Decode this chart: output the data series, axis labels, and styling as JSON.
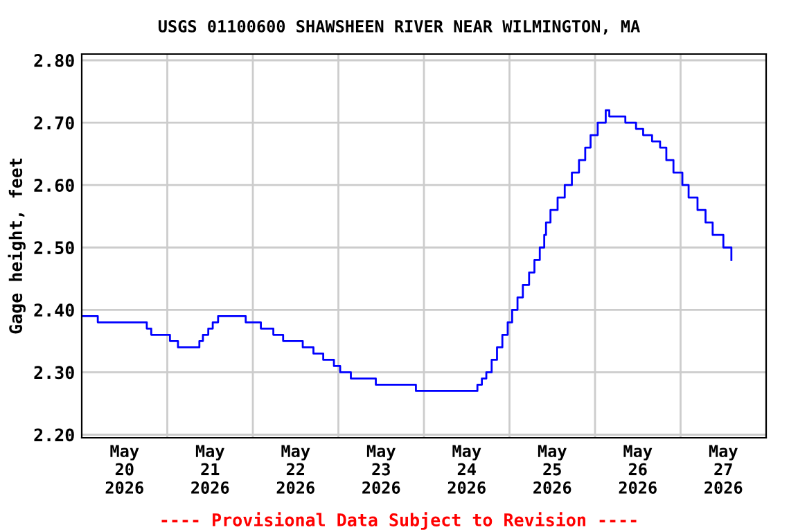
{
  "chart_data": {
    "type": "step",
    "title": "USGS 01100600 SHAWSHEEN RIVER NEAR WILMINGTON, MA",
    "ylabel": "Gage height, feet",
    "annotations": [
      "---- Provisional Data Subject to Revision ----"
    ],
    "series": [
      {
        "color": "#0000ff",
        "x": [
          "2026-05-20T00:15",
          "2026-05-20T04:30",
          "2026-05-20T18:15",
          "2026-05-20T19:30",
          "2026-05-21T00:45",
          "2026-05-21T03:00",
          "2026-05-21T09:00",
          "2026-05-21T10:00",
          "2026-05-21T11:30",
          "2026-05-21T12:45",
          "2026-05-21T14:15",
          "2026-05-21T22:00",
          "2026-05-22T02:15",
          "2026-05-22T05:45",
          "2026-05-22T08:30",
          "2026-05-22T14:00",
          "2026-05-22T17:00",
          "2026-05-22T19:45",
          "2026-05-22T22:45",
          "2026-05-23T00:30",
          "2026-05-23T03:30",
          "2026-05-23T10:30",
          "2026-05-23T21:45",
          "2026-05-24T15:00",
          "2026-05-24T16:15",
          "2026-05-24T17:30",
          "2026-05-24T19:00",
          "2026-05-24T20:30",
          "2026-05-24T22:00",
          "2026-05-24T23:30",
          "2026-05-25T00:45",
          "2026-05-25T02:15",
          "2026-05-25T03:45",
          "2026-05-25T05:30",
          "2026-05-25T07:00",
          "2026-05-25T08:30",
          "2026-05-25T09:45",
          "2026-05-25T10:15",
          "2026-05-25T11:30",
          "2026-05-25T13:30",
          "2026-05-25T15:30",
          "2026-05-25T17:30",
          "2026-05-25T19:30",
          "2026-05-25T21:15",
          "2026-05-25T22:45",
          "2026-05-26T00:45",
          "2026-05-26T03:00",
          "2026-05-26T04:00",
          "2026-05-26T08:30",
          "2026-05-26T11:30",
          "2026-05-26T13:30",
          "2026-05-26T16:00",
          "2026-05-26T18:15",
          "2026-05-26T20:00",
          "2026-05-26T22:00",
          "2026-05-27T00:30",
          "2026-05-27T02:15",
          "2026-05-27T04:45",
          "2026-05-27T07:00",
          "2026-05-27T09:00",
          "2026-05-27T12:00",
          "2026-05-27T14:15"
        ],
        "values": [
          2.39,
          2.38,
          2.37,
          2.36,
          2.35,
          2.34,
          2.35,
          2.36,
          2.37,
          2.38,
          2.39,
          2.38,
          2.37,
          2.36,
          2.35,
          2.34,
          2.33,
          2.32,
          2.31,
          2.3,
          2.29,
          2.28,
          2.27,
          2.28,
          2.29,
          2.3,
          2.32,
          2.34,
          2.36,
          2.38,
          2.4,
          2.42,
          2.44,
          2.46,
          2.48,
          2.5,
          2.52,
          2.54,
          2.56,
          2.58,
          2.6,
          2.62,
          2.64,
          2.66,
          2.68,
          2.7,
          2.72,
          2.71,
          2.7,
          2.69,
          2.68,
          2.67,
          2.66,
          2.64,
          2.62,
          2.6,
          2.58,
          2.56,
          2.54,
          2.52,
          2.5,
          2.48
        ]
      }
    ],
    "xlim": [
      "2026-05-20T00:00",
      "2026-05-28T00:00"
    ],
    "xticks": [
      {
        "value": "2026-05-20T12:00",
        "label": "May\n20\n2026"
      },
      {
        "value": "2026-05-21T12:00",
        "label": "May\n21\n2026"
      },
      {
        "value": "2026-05-22T12:00",
        "label": "May\n22\n2026"
      },
      {
        "value": "2026-05-23T12:00",
        "label": "May\n23\n2026"
      },
      {
        "value": "2026-05-24T12:00",
        "label": "May\n24\n2026"
      },
      {
        "value": "2026-05-25T12:00",
        "label": "May\n25\n2026"
      },
      {
        "value": "2026-05-26T12:00",
        "label": "May\n26\n2026"
      },
      {
        "value": "2026-05-27T12:00",
        "label": "May\n27\n2026"
      },
      {
        "value": "2026-05-21T00:00",
        "label": null
      },
      {
        "value": "2026-05-22T00:00",
        "label": null
      },
      {
        "value": "2026-05-23T00:00",
        "label": null
      },
      {
        "value": "2026-05-24T00:00",
        "label": null
      },
      {
        "value": "2026-05-25T00:00",
        "label": null
      },
      {
        "value": "2026-05-26T00:00",
        "label": null
      },
      {
        "value": "2026-05-27T00:00",
        "label": null
      }
    ],
    "ylim": [
      2.195,
      2.81
    ],
    "yticks": [
      {
        "value": 2.2,
        "label": "2.20"
      },
      {
        "value": 2.3,
        "label": "2.30"
      },
      {
        "value": 2.4,
        "label": "2.40"
      },
      {
        "value": 2.5,
        "label": "2.50"
      },
      {
        "value": 2.6,
        "label": "2.60"
      },
      {
        "value": 2.7,
        "label": "2.70"
      },
      {
        "value": 2.8,
        "label": "2.80"
      }
    ],
    "grid": true,
    "legend": false
  }
}
